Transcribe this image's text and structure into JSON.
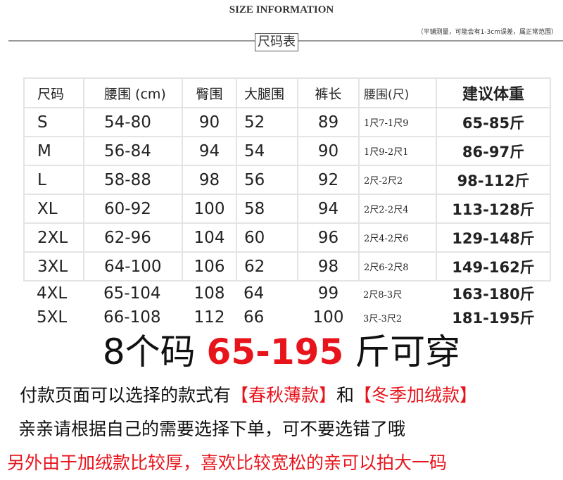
{
  "header": {
    "title": "SIZE INFORMATION",
    "note": "（平铺测量，可能会有1-3cm误差，属正常范围）",
    "badge": "尺码表"
  },
  "table": {
    "headers": [
      "尺码",
      "腰围 (cm)",
      "臀围",
      "大腿围",
      "裤长",
      "腰围(尺)",
      "建议体重"
    ],
    "rows": [
      [
        "S",
        "54-80",
        "90",
        "52",
        "89",
        "1尺7-1尺9",
        "65-85斤"
      ],
      [
        "M",
        "56-84",
        "94",
        "54",
        "90",
        "1尺9-2尺1",
        "86-97斤"
      ],
      [
        "L",
        "58-88",
        "98",
        "56",
        "92",
        "2尺-2尺2",
        "98-112斤"
      ],
      [
        "XL",
        "60-92",
        "100",
        "58",
        "94",
        "2尺2-2尺4",
        "113-128斤"
      ],
      [
        "2XL",
        "62-96",
        "104",
        "60",
        "96",
        "2尺4-2尺6",
        "129-148斤"
      ],
      [
        "3XL",
        "64-100",
        "106",
        "62",
        "98",
        "2尺6-2尺8",
        "149-162斤"
      ],
      [
        "4XL",
        "65-104",
        "108",
        "64",
        "99",
        "2尺8-3尺",
        "163-180斤"
      ],
      [
        "5XL",
        "66-108",
        "112",
        "66",
        "100",
        "3尺-3尺2",
        "181-195斤"
      ]
    ]
  },
  "summary": {
    "prefix": "8个码 ",
    "range": "65-195",
    "suffix": " 斤可穿"
  },
  "lines": {
    "l1a": "付款页面可以选择的款式有",
    "l1b": "【春秋薄款】",
    "l1c": "和",
    "l1d": "【冬季加绒款】",
    "l2": "亲亲请根据自己的需要选择下单，可不要选错了哦",
    "l3": "另外由于加绒款比较厚，喜欢比较宽松的亲可以拍大一码"
  },
  "colors": {
    "accent": "#e8141c"
  }
}
